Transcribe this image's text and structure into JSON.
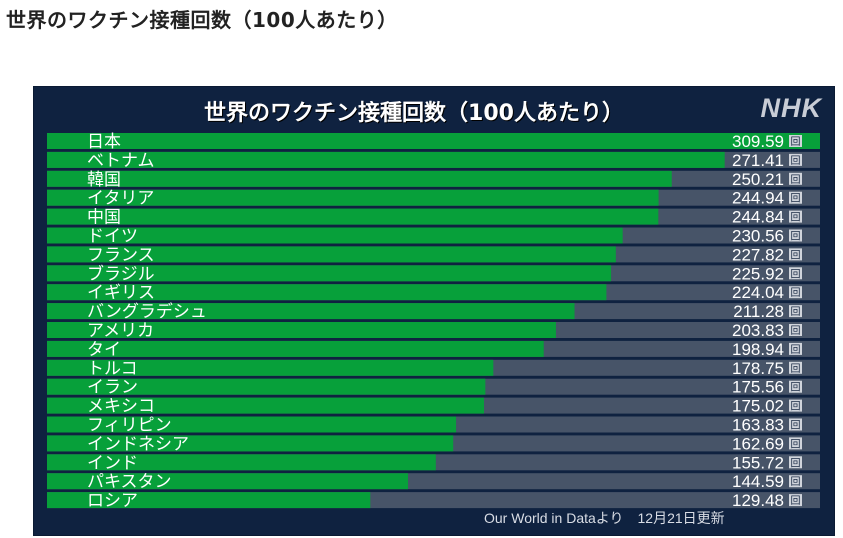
{
  "page_heading": "世界のワクチン接種回数（100人あたり）",
  "logo": "NHK",
  "source_note": "Our World in Dataより　12月21日更新",
  "unit": "回",
  "colors": {
    "panel": "#0f2240",
    "bar": "#07a03a",
    "track": "#475468",
    "text": "#ffffff",
    "unit_box": "#d0d4db"
  },
  "chart_data": {
    "type": "bar",
    "orientation": "horizontal",
    "title": "世界のワクチン接種回数（100人あたり）",
    "unit": "回",
    "xlim": [
      0,
      309.59
    ],
    "categories": [
      "日本",
      "ベトナム",
      "韓国",
      "イタリア",
      "中国",
      "ドイツ",
      "フランス",
      "ブラジル",
      "イギリス",
      "バングラデシュ",
      "アメリカ",
      "タイ",
      "トルコ",
      "イラン",
      "メキシコ",
      "フィリピン",
      "インドネシア",
      "インド",
      "パキスタン",
      "ロシア"
    ],
    "values": [
      309.59,
      271.41,
      250.21,
      244.94,
      244.84,
      230.56,
      227.82,
      225.92,
      224.04,
      211.28,
      203.83,
      198.94,
      178.75,
      175.56,
      175.02,
      163.83,
      162.69,
      155.72,
      144.59,
      129.48
    ],
    "value_labels": [
      "309.59",
      "271.41",
      "250.21",
      "244.94",
      "244.84",
      "230.56",
      "227.82",
      "225.92",
      "224.04",
      "211.28",
      "203.83",
      "198.94",
      "178.75",
      "175.56",
      "175.02",
      "163.83",
      "162.69",
      "155.72",
      "144.59",
      "129.48"
    ]
  }
}
